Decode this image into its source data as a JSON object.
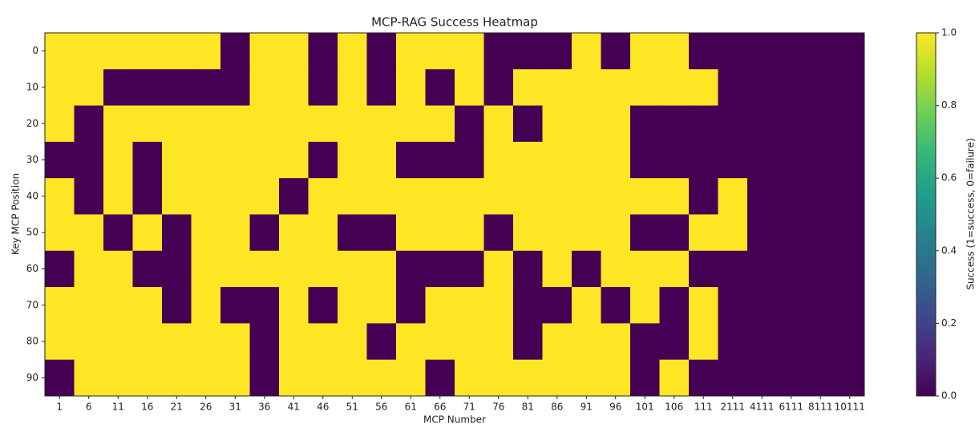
{
  "chart_data": {
    "type": "heatmap",
    "title": "MCP-RAG Success Heatmap",
    "xlabel": "MCP Number",
    "ylabel": "Key MCP Position",
    "colorbar_label": "Success (1=success, 0=failure)",
    "colormap": "viridis",
    "x": [
      1,
      6,
      11,
      16,
      21,
      26,
      31,
      36,
      41,
      46,
      51,
      56,
      61,
      66,
      71,
      76,
      81,
      86,
      91,
      96,
      101,
      106,
      111,
      2111,
      4111,
      6111,
      8111,
      10111
    ],
    "y": [
      0,
      10,
      20,
      30,
      40,
      50,
      60,
      70,
      80,
      90
    ],
    "z": [
      [
        1,
        1,
        1,
        1,
        1,
        1,
        0,
        1,
        1,
        0,
        1,
        0,
        1,
        1,
        1,
        0,
        0,
        0,
        1,
        0,
        1,
        1,
        0,
        0,
        0,
        0,
        0,
        0
      ],
      [
        1,
        1,
        0,
        0,
        0,
        0,
        0,
        1,
        1,
        0,
        1,
        0,
        1,
        0,
        1,
        0,
        1,
        1,
        1,
        1,
        1,
        1,
        1,
        0,
        0,
        0,
        0,
        0
      ],
      [
        1,
        0,
        1,
        1,
        1,
        1,
        1,
        1,
        1,
        1,
        1,
        1,
        1,
        1,
        0,
        1,
        0,
        1,
        1,
        1,
        0,
        0,
        0,
        0,
        0,
        0,
        0,
        0
      ],
      [
        0,
        0,
        1,
        0,
        1,
        1,
        1,
        1,
        1,
        0,
        1,
        1,
        0,
        0,
        0,
        1,
        1,
        1,
        1,
        1,
        0,
        0,
        0,
        0,
        0,
        0,
        0,
        0
      ],
      [
        1,
        0,
        1,
        0,
        1,
        1,
        1,
        1,
        0,
        1,
        1,
        1,
        1,
        1,
        1,
        1,
        1,
        1,
        1,
        1,
        1,
        1,
        0,
        1,
        0,
        0,
        0,
        0
      ],
      [
        1,
        1,
        0,
        1,
        0,
        1,
        1,
        0,
        1,
        1,
        0,
        0,
        1,
        1,
        1,
        0,
        1,
        1,
        1,
        1,
        0,
        0,
        1,
        1,
        0,
        0,
        0,
        0
      ],
      [
        0,
        1,
        1,
        0,
        0,
        1,
        1,
        1,
        1,
        1,
        1,
        1,
        0,
        0,
        0,
        1,
        0,
        1,
        0,
        1,
        1,
        1,
        0,
        0,
        0,
        0,
        0,
        0
      ],
      [
        1,
        1,
        1,
        1,
        0,
        1,
        0,
        0,
        1,
        0,
        1,
        1,
        0,
        1,
        1,
        1,
        0,
        0,
        1,
        0,
        1,
        0,
        1,
        0,
        0,
        0,
        0,
        0
      ],
      [
        1,
        1,
        1,
        1,
        1,
        1,
        1,
        0,
        1,
        1,
        1,
        0,
        1,
        1,
        1,
        1,
        0,
        1,
        1,
        1,
        0,
        0,
        1,
        0,
        0,
        0,
        0,
        0
      ],
      [
        0,
        1,
        1,
        1,
        1,
        1,
        1,
        0,
        1,
        1,
        1,
        1,
        1,
        0,
        1,
        1,
        1,
        1,
        1,
        1,
        0,
        1,
        0,
        0,
        0,
        0,
        0,
        0
      ]
    ],
    "zlim": [
      0,
      1
    ],
    "zticks": [
      {
        "value": 0,
        "label": "0.0"
      },
      {
        "value": 0.2,
        "label": "0.2"
      },
      {
        "value": 0.4,
        "label": "0.4"
      },
      {
        "value": 0.6,
        "label": "0.6"
      },
      {
        "value": 0.8,
        "label": "0.8"
      },
      {
        "value": 1,
        "label": "1.0"
      }
    ]
  }
}
